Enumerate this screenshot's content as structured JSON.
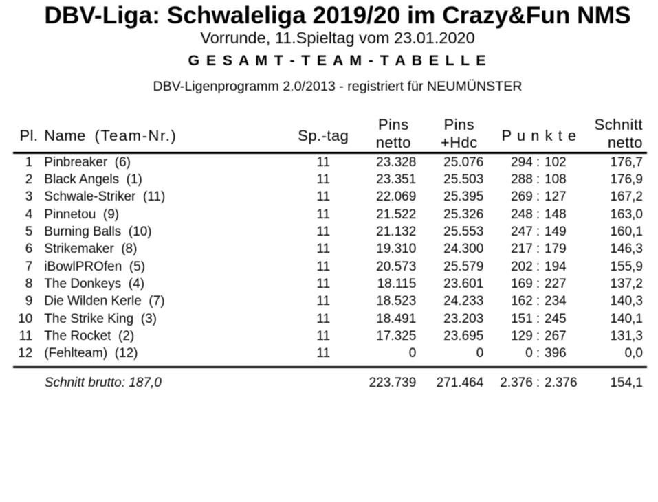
{
  "page": {
    "background_color": "#ffffff",
    "text_color": "#000000"
  },
  "header": {
    "title": "DBV-Liga: Schwaleliga 2019/20 im Crazy&Fun NMS",
    "subtitle": "Vorrunde, 11.Spieltag vom 23.01.2020",
    "section_title": "G E S A M T - T E A M - T A B E L L E",
    "program_note": "DBV-Ligenprogramm 2.0/2013 - registriert für NEUMÜNSTER"
  },
  "table": {
    "columns": {
      "pl": "Pl.",
      "name": "Name",
      "name_nr": "(Team-Nr.)",
      "sptag": "Sp.-tag",
      "pins_netto": [
        "Pins",
        "netto"
      ],
      "pins_hdc": [
        "Pins",
        "+Hdc"
      ],
      "punkte": "P u n k t e",
      "schnitt_netto": [
        "Schnitt",
        "netto"
      ]
    },
    "punkte_separator": ":",
    "rows": [
      {
        "pl": "1",
        "name": "Pinbreaker  (6)",
        "sptag": "11",
        "pins_netto": "23.328",
        "pins_hdc": "25.076",
        "punkte_for": "294",
        "punkte_against": "102",
        "schnitt": "176,7"
      },
      {
        "pl": "2",
        "name": "Black Angels  (1)",
        "sptag": "11",
        "pins_netto": "23.351",
        "pins_hdc": "25.503",
        "punkte_for": "288",
        "punkte_against": "108",
        "schnitt": "176,9"
      },
      {
        "pl": "3",
        "name": "Schwale-Striker  (11)",
        "sptag": "11",
        "pins_netto": "22.069",
        "pins_hdc": "25.395",
        "punkte_for": "269",
        "punkte_against": "127",
        "schnitt": "167,2"
      },
      {
        "pl": "4",
        "name": "Pinnetou  (9)",
        "sptag": "11",
        "pins_netto": "21.522",
        "pins_hdc": "25.326",
        "punkte_for": "248",
        "punkte_against": "148",
        "schnitt": "163,0"
      },
      {
        "pl": "5",
        "name": "Burning Balls  (10)",
        "sptag": "11",
        "pins_netto": "21.132",
        "pins_hdc": "25.553",
        "punkte_for": "247",
        "punkte_against": "149",
        "schnitt": "160,1"
      },
      {
        "pl": "6",
        "name": "Strikemaker  (8)",
        "sptag": "11",
        "pins_netto": "19.310",
        "pins_hdc": "24.300",
        "punkte_for": "217",
        "punkte_against": "179",
        "schnitt": "146,3"
      },
      {
        "pl": "7",
        "name": "iBowlPROfen  (5)",
        "sptag": "11",
        "pins_netto": "20.573",
        "pins_hdc": "25.579",
        "punkte_for": "202",
        "punkte_against": "194",
        "schnitt": "155,9"
      },
      {
        "pl": "8",
        "name": "The Donkeys  (4)",
        "sptag": "11",
        "pins_netto": "18.115",
        "pins_hdc": "23.601",
        "punkte_for": "169",
        "punkte_against": "227",
        "schnitt": "137,2"
      },
      {
        "pl": "9",
        "name": "Die Wilden Kerle  (7)",
        "sptag": "11",
        "pins_netto": "18.523",
        "pins_hdc": "24.233",
        "punkte_for": "162",
        "punkte_against": "234",
        "schnitt": "140,3"
      },
      {
        "pl": "10",
        "name": "The Strike King  (3)",
        "sptag": "11",
        "pins_netto": "18.491",
        "pins_hdc": "23.203",
        "punkte_for": "151",
        "punkte_against": "245",
        "schnitt": "140,1"
      },
      {
        "pl": "11",
        "name": "The Rocket  (2)",
        "sptag": "11",
        "pins_netto": "17.325",
        "pins_hdc": "23.695",
        "punkte_for": "129",
        "punkte_against": "267",
        "schnitt": "131,3"
      },
      {
        "pl": "12",
        "name": "(Fehlteam)  (12)",
        "sptag": "11",
        "pins_netto": "0",
        "pins_hdc": "0",
        "punkte_for": "0",
        "punkte_against": "396",
        "schnitt": "0,0"
      }
    ],
    "summary": {
      "label": "Schnitt brutto: 187,0",
      "pins_netto": "223.739",
      "pins_hdc": "271.464",
      "punkte_for": "2.376",
      "punkte_against": "2.376",
      "schnitt": "154,1"
    }
  }
}
